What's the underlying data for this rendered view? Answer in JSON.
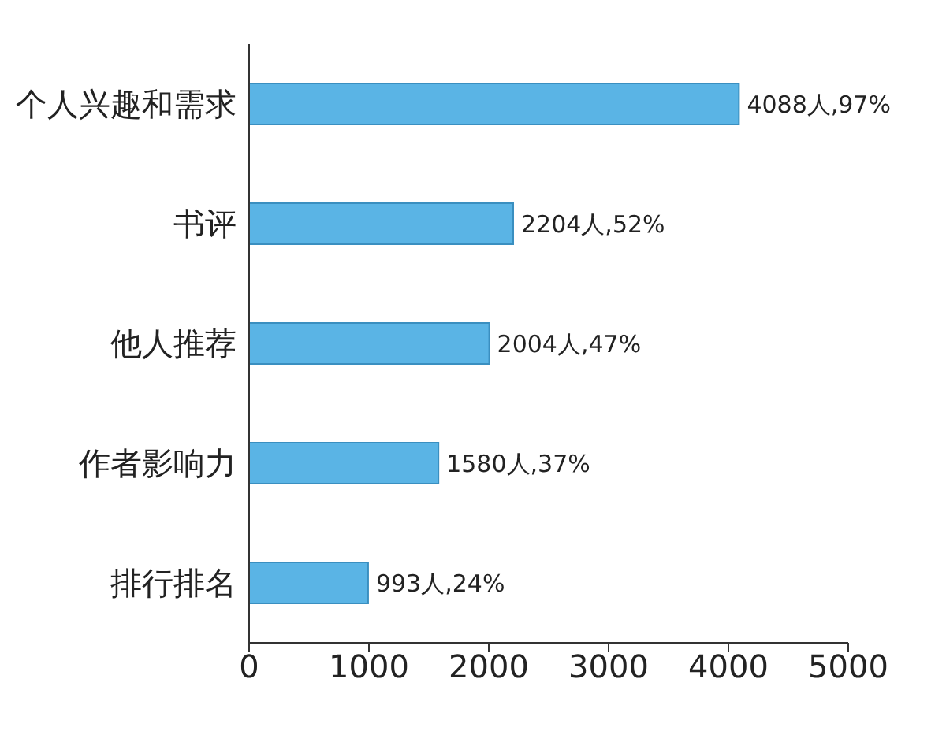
{
  "chart_data": {
    "type": "bar",
    "orientation": "horizontal",
    "categories": [
      "个人兴趣和需求",
      "书评",
      "他人推荐",
      "作者影响力",
      "排行排名"
    ],
    "values": [
      4088,
      2204,
      2004,
      1580,
      993
    ],
    "value_labels": [
      "4088人,97%",
      "2204人,52%",
      "2004人,47%",
      "1580人,37%",
      "993人,24%"
    ],
    "color": "#5ab4e5",
    "xlim": [
      0,
      5000
    ],
    "xticks": [
      0,
      1000,
      2000,
      3000,
      4000,
      5000
    ],
    "grid": false,
    "legend": false
  }
}
